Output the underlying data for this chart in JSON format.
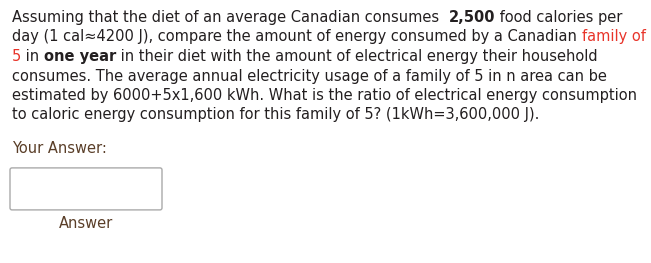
{
  "bg_color": "#ffffff",
  "text_color": "#231f20",
  "red_color": "#e8342a",
  "label_color": "#5a3e28",
  "line1_parts": [
    {
      "text": "Assuming that the diet of an average Canadian consumes  ",
      "bold": false,
      "color": "#231f20"
    },
    {
      "text": "2,500",
      "bold": true,
      "color": "#231f20"
    },
    {
      "text": " food calories per",
      "bold": false,
      "color": "#231f20"
    }
  ],
  "line2_parts": [
    {
      "text": "day (1 cal≈4200 J), compare the amount of energy consumed by a Canadian ",
      "bold": false,
      "color": "#231f20"
    },
    {
      "text": "family of",
      "bold": false,
      "color": "#e8342a"
    }
  ],
  "line3_parts": [
    {
      "text": "5",
      "bold": false,
      "color": "#e8342a"
    },
    {
      "text": " in ",
      "bold": false,
      "color": "#231f20"
    },
    {
      "text": "one year",
      "bold": true,
      "color": "#231f20"
    },
    {
      "text": " in their diet with the amount of electrical energy their household",
      "bold": false,
      "color": "#231f20"
    }
  ],
  "line4": "consumes. The average annual electricity usage of a family of 5 in n area can be",
  "line5": "estimated by 6000+5x1,600 kWh. What is the ratio of electrical energy consumption",
  "line6": "to caloric energy consumption for this family of 5? (1kWh=3,600,000 J).",
  "your_answer_label": "Your Answer:",
  "answer_label": "Answer",
  "font_size": 10.5
}
